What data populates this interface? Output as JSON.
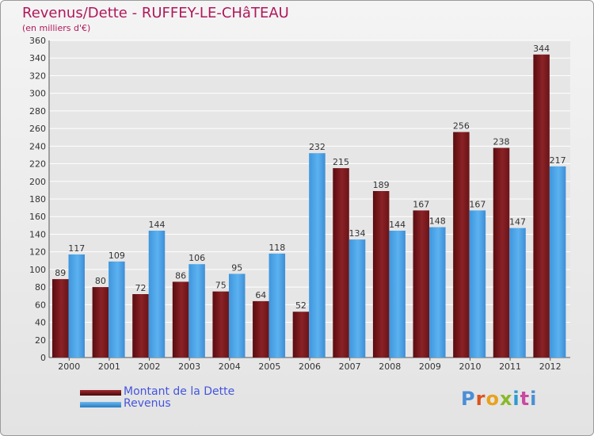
{
  "chart_data": {
    "type": "bar",
    "title": "Revenus/Dette - RUFFEY-LE-CHâTEAU",
    "subtitle": "(en milliers d'€)",
    "categories": [
      "2000",
      "2001",
      "2002",
      "2003",
      "2004",
      "2005",
      "2006",
      "2007",
      "2008",
      "2009",
      "2010",
      "2011",
      "2012"
    ],
    "series": [
      {
        "name": "Montant de la Dette",
        "color": "#7a1a1e",
        "values": [
          89,
          80,
          72,
          86,
          75,
          64,
          52,
          215,
          189,
          167,
          256,
          238,
          344
        ]
      },
      {
        "name": "Revenus",
        "color": "#4aa3e6",
        "values": [
          117,
          109,
          144,
          106,
          95,
          118,
          232,
          134,
          144,
          148,
          167,
          147,
          217
        ]
      }
    ],
    "ylim": [
      0,
      360
    ],
    "yticks": [
      0,
      20,
      40,
      60,
      80,
      100,
      120,
      140,
      160,
      180,
      200,
      220,
      240,
      260,
      280,
      300,
      320,
      340,
      360
    ],
    "grid": true,
    "legend_position": "bottom-left"
  },
  "logo": {
    "text": "Proxiti"
  }
}
